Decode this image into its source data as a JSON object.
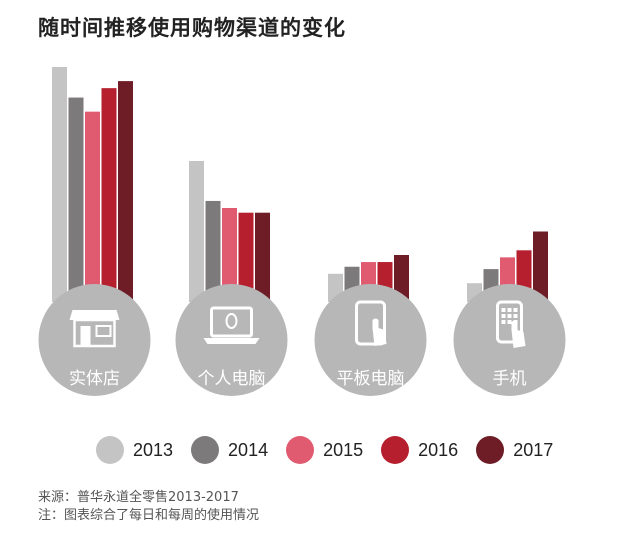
{
  "chart_data": {
    "type": "bar",
    "title": "随时间推移使用购物渠道的变化",
    "categories": [
      "实体店",
      "个人电脑",
      "平板电脑",
      "手机"
    ],
    "category_icons": [
      "storefront-icon",
      "laptop-icon",
      "tablet-touch-icon",
      "phone-touch-icon"
    ],
    "series": [
      {
        "name": "2013",
        "color": "#c4c4c4",
        "values": [
          100,
          60,
          12,
          8
        ]
      },
      {
        "name": "2014",
        "color": "#7d7a7b",
        "values": [
          87,
          43,
          15,
          14
        ]
      },
      {
        "name": "2015",
        "color": "#e05a70",
        "values": [
          81,
          40,
          17,
          19
        ]
      },
      {
        "name": "2016",
        "color": "#b51f2e",
        "values": [
          91,
          38,
          17,
          22
        ]
      },
      {
        "name": "2017",
        "color": "#6e1d26",
        "values": [
          94,
          38,
          20,
          30
        ]
      }
    ],
    "ylim": [
      0,
      100
    ],
    "grid": false,
    "legend": "bottom",
    "xlabel": "",
    "ylabel": ""
  },
  "notes": {
    "source": "来源：普华永道全零售2013-2017",
    "note": "注：图表综合了每日和每周的使用情况"
  }
}
